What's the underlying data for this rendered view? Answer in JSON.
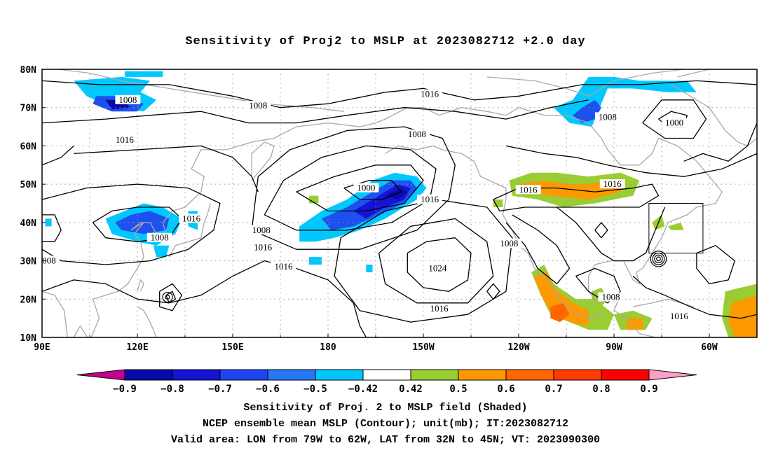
{
  "title": "Sensitivity of Proj2 to MSLP at 2023082712 +2.0 day",
  "map": {
    "lat_labels": [
      "80N",
      "70N",
      "60N",
      "50N",
      "40N",
      "30N",
      "20N",
      "10N"
    ],
    "lon_labels": [
      "90E",
      "120E",
      "150E",
      "180",
      "150W",
      "120W",
      "90W",
      "60W"
    ],
    "contour_labels": [
      {
        "text": "1008",
        "lon": 117.0,
        "lat": 72.0
      },
      {
        "text": "1008",
        "lon": 158.0,
        "lat": 70.5
      },
      {
        "text": "1016",
        "lon": 116.0,
        "lat": 61.5
      },
      {
        "text": "1016",
        "lon": 212.0,
        "lat": 73.5
      },
      {
        "text": "1008",
        "lon": 208.0,
        "lat": 63.0
      },
      {
        "text": "1008",
        "lon": 268.0,
        "lat": 67.5
      },
      {
        "text": "1000",
        "lon": 289.0,
        "lat": 66.0
      },
      {
        "text": "1000",
        "lon": 192.0,
        "lat": 49.0
      },
      {
        "text": "1016",
        "lon": 212.0,
        "lat": 46.0
      },
      {
        "text": "1016",
        "lon": 243.0,
        "lat": 48.5
      },
      {
        "text": "1016",
        "lon": 269.5,
        "lat": 50.0
      },
      {
        "text": "1016",
        "lon": 137.0,
        "lat": 41.0
      },
      {
        "text": "1008",
        "lon": 127.0,
        "lat": 36.0
      },
      {
        "text": "1008",
        "lon": 91.5,
        "lat": 30.0
      },
      {
        "text": "1008",
        "lon": 159.0,
        "lat": 38.0
      },
      {
        "text": "1016",
        "lon": 159.5,
        "lat": 33.5
      },
      {
        "text": "1016",
        "lon": 166.0,
        "lat": 28.5
      },
      {
        "text": "1024",
        "lon": 214.5,
        "lat": 28.0
      },
      {
        "text": "1016",
        "lon": 215.0,
        "lat": 17.5
      },
      {
        "text": "1008",
        "lon": 237.0,
        "lat": 34.5
      },
      {
        "text": "1008",
        "lon": 269.0,
        "lat": 20.5
      },
      {
        "text": "1016",
        "lon": 290.5,
        "lat": 15.5
      }
    ],
    "valid_box": {
      "lon_min": 281,
      "lon_max": 298,
      "lat_min": 32,
      "lat_max": 45
    },
    "colors": {
      "neg09": "#c4008c",
      "neg08": "#0a0aa8",
      "neg07": "#1414d2",
      "neg06": "#1e50f0",
      "neg05": "#2878f0",
      "neg042": "#00c8ff",
      "pos05": "#9acd32",
      "pos06": "#ff9900",
      "pos07": "#ff6600",
      "pos08": "#ff2800",
      "pos09": "#ff0000",
      "pos_over": "#ff9ec8",
      "coast": "#a8a8a8"
    }
  },
  "colorbar": {
    "labels": [
      "-0.9",
      "-0.8",
      "-0.7",
      "-0.6",
      "-0.5",
      "-0.42",
      "0.42",
      "0.5",
      "0.6",
      "0.7",
      "0.8",
      "0.9"
    ],
    "colors": [
      "#0a0aa8",
      "#1414d2",
      "#1e46f0",
      "#2878f5",
      "#00c8ff",
      "#ffffff",
      "#9acd32",
      "#ff9900",
      "#ff6600",
      "#ff3c00",
      "#ff0000"
    ],
    "under_color": "#c4008c",
    "over_color": "#ff9ec8"
  },
  "captions": [
    "Sensitivity of Proj. 2 to MSLP field (Shaded)",
    "NCEP ensemble mean MSLP (Contour); unit(mb); IT:2023082712",
    "Valid area: LON from 79W to 62W, LAT from 32N to 45N; VT: 2023090300"
  ]
}
